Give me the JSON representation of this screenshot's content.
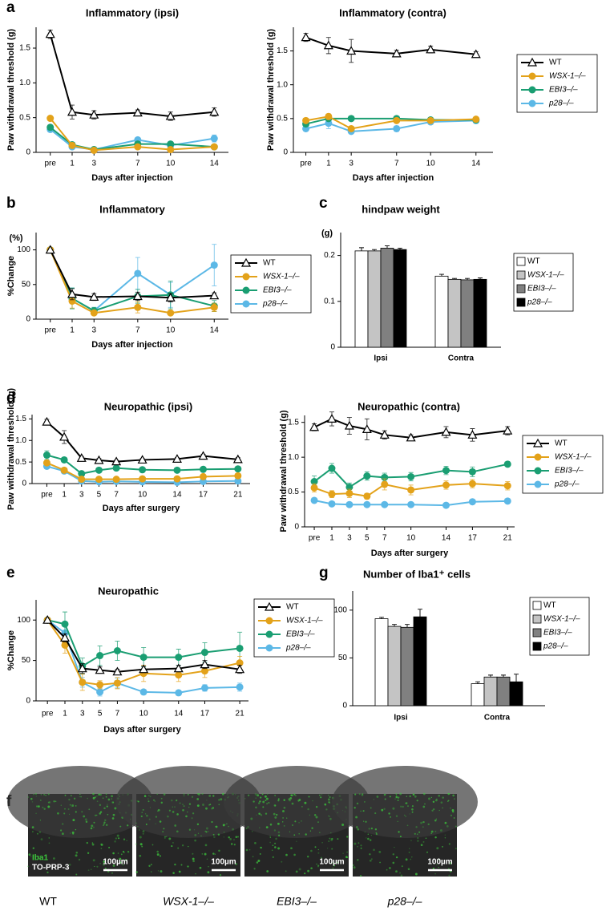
{
  "chart_data": [
    {
      "panel": "a",
      "type": "line",
      "title": "Inflammatory (ipsi)",
      "ylabel": "Paw withdrawal threshold (g)",
      "xlabel": "Days after injection",
      "x": [
        -1,
        1,
        3,
        7,
        10,
        14
      ],
      "xticks": [
        {
          "value": -1,
          "label": "pre"
        },
        1,
        3,
        7,
        10,
        14
      ],
      "xlim": [
        -2.3,
        15.3
      ],
      "ylim": [
        0,
        1.8
      ],
      "yticks": [
        0,
        0.5,
        {
          "value": 1,
          "label": "1.0"
        },
        1.5
      ],
      "series": [
        {
          "color": "#000000",
          "marker": "triangle-open",
          "values": [
            1.7,
            0.58,
            0.54,
            0.57,
            0.52,
            0.58
          ],
          "errors": [
            0.06,
            0.1,
            0.06,
            0.04,
            0.06,
            0.06
          ]
        },
        {
          "color": "#e3a21a",
          "marker": "circle",
          "values": [
            0.49,
            0.1,
            0.03,
            0.08,
            0.04,
            0.08
          ],
          "errors": [
            0.02,
            0.02,
            0.01,
            0.02,
            0.01,
            0.02
          ]
        },
        {
          "color": "#1a9e72",
          "marker": "circle",
          "values": [
            0.36,
            0.11,
            0.04,
            0.12,
            0.12,
            0.08
          ],
          "errors": [
            0.03,
            0.02,
            0.01,
            0.02,
            0.02,
            0.02
          ]
        },
        {
          "color": "#5cb8e6",
          "marker": "circle",
          "values": [
            0.33,
            0.08,
            0.04,
            0.18,
            0.1,
            0.2
          ],
          "errors": [
            0.03,
            0.02,
            0.01,
            0.03,
            0.03,
            0.05
          ]
        }
      ]
    },
    {
      "type": "line",
      "title": "Inflammatory (contra)",
      "ylabel": "Paw withdrawal threshold (g)",
      "xlabel": "Days after injection",
      "x": [
        -1,
        1,
        3,
        7,
        10,
        14
      ],
      "xticks": [
        {
          "value": -1,
          "label": "pre"
        },
        1,
        3,
        7,
        10,
        14
      ],
      "xlim": [
        -2.1,
        15.5
      ],
      "ylim": [
        0,
        1.85
      ],
      "yticks": [
        0,
        0.5,
        {
          "value": 1,
          "label": "1.0"
        },
        1.5
      ],
      "legend": "right",
      "series": [
        {
          "name": "WT",
          "color": "#000000",
          "marker": "triangle-open",
          "values": [
            1.7,
            1.58,
            1.5,
            1.46,
            1.52,
            1.45
          ],
          "errors": [
            0.06,
            0.12,
            0.17,
            0.05,
            0.05,
            0.04
          ]
        },
        {
          "name": "WSX-1–/–",
          "font_style": "italic",
          "color": "#e3a21a",
          "marker": "circle",
          "values": [
            0.47,
            0.53,
            0.35,
            0.47,
            0.47,
            0.49
          ],
          "errors": [
            0.03,
            0.04,
            0.03,
            0.03,
            0.03,
            0.03
          ]
        },
        {
          "name": "EBI3–/–",
          "font_style": "italic",
          "color": "#1a9e72",
          "marker": "circle",
          "values": [
            0.42,
            0.5,
            0.5,
            0.5,
            0.48,
            0.48
          ],
          "errors": [
            0.03,
            0.03,
            0.02,
            0.02,
            0.02,
            0.02
          ]
        },
        {
          "name": "p28–/–",
          "font_style": "italic",
          "color": "#5cb8e6",
          "marker": "circle",
          "values": [
            0.35,
            0.43,
            0.31,
            0.35,
            0.45,
            0.47
          ],
          "errors": [
            0.03,
            0.08,
            0.03,
            0.04,
            0.03,
            0.04
          ]
        }
      ]
    },
    {
      "panel": "b",
      "type": "line",
      "title": "Inflammatory",
      "ylabel": "%Change",
      "yunit": "(%)",
      "xlabel": "Days after injection",
      "x": [
        -1,
        1,
        3,
        7,
        10,
        14
      ],
      "xticks": [
        {
          "value": -1,
          "label": "pre"
        },
        1,
        3,
        7,
        10,
        14
      ],
      "xlim": [
        -2.3,
        15.3
      ],
      "ylim": [
        0,
        125
      ],
      "yticks": [
        0,
        50,
        100
      ],
      "legend": "right",
      "series": [
        {
          "name": "WT",
          "color": "#000000",
          "marker": "triangle-open",
          "values": [
            100,
            36,
            32,
            33,
            31,
            34
          ],
          "errors": [
            0,
            8,
            5,
            6,
            6,
            4
          ]
        },
        {
          "name": "WSX-1–/–",
          "font_style": "italic",
          "color": "#e3a21a",
          "marker": "circle",
          "values": [
            100,
            26,
            9,
            17,
            9,
            17
          ],
          "errors": [
            0,
            10,
            3,
            8,
            3,
            6
          ]
        },
        {
          "name": "EBI3–/–",
          "font_style": "italic",
          "color": "#1a9e72",
          "marker": "circle",
          "values": [
            100,
            30,
            12,
            33,
            35,
            19
          ],
          "errors": [
            0,
            15,
            5,
            10,
            20,
            8
          ]
        },
        {
          "name": "p28–/–",
          "font_style": "italic",
          "color": "#5cb8e6",
          "marker": "circle",
          "values": [
            100,
            30,
            12,
            66,
            35,
            78
          ],
          "errors": [
            0,
            15,
            5,
            23,
            18,
            30
          ]
        }
      ]
    },
    {
      "panel": "c",
      "type": "bar",
      "title": "hindpaw weight",
      "yunit": "(g)",
      "categories": [
        "Ipsi",
        "Contra"
      ],
      "ylim": [
        0,
        0.25
      ],
      "yticks": [
        0,
        0.1,
        0.2
      ],
      "legend": "right",
      "series": [
        {
          "name": "WT",
          "color": "#ffffff",
          "values": [
            0.21,
            0.155
          ],
          "errors": [
            0.007,
            0.004
          ]
        },
        {
          "name": "WSX-1–/–",
          "font_style": "italic",
          "color": "#c4c4c4",
          "values": [
            0.21,
            0.148
          ],
          "errors": [
            0.003,
            0.002
          ]
        },
        {
          "name": "EBI3–/–",
          "font_style": "italic",
          "color": "#808080",
          "values": [
            0.216,
            0.147
          ],
          "errors": [
            0.005,
            0.003
          ]
        },
        {
          "name": "p28–/–",
          "font_style": "italic",
          "color": "#000000",
          "values": [
            0.213,
            0.148
          ],
          "errors": [
            0.003,
            0.003
          ]
        }
      ]
    },
    {
      "panel": "d",
      "type": "line",
      "title": "Neuropathic (ipsi)",
      "ylabel": "Paw withdrawal threshold (g)",
      "xlabel": "Days after surgery",
      "x": [
        -1,
        1,
        3,
        5,
        7,
        10,
        14,
        17,
        21
      ],
      "xticks": [
        {
          "value": -1,
          "label": "pre"
        },
        1,
        3,
        5,
        7,
        10,
        14,
        17,
        21
      ],
      "xlim": [
        -2.7,
        22.4
      ],
      "ylim": [
        0,
        1.6
      ],
      "yticks": [
        0,
        0.5,
        {
          "value": 1,
          "label": "1.0"
        },
        1.5
      ],
      "series": [
        {
          "color": "#000000",
          "marker": "triangle-open",
          "values": [
            1.43,
            1.08,
            0.59,
            0.54,
            0.51,
            0.55,
            0.57,
            0.64,
            0.56
          ],
          "errors": [
            0.06,
            0.15,
            0.04,
            0.04,
            0.03,
            0.03,
            0.03,
            0.04,
            0.04
          ]
        },
        {
          "color": "#e3a21a",
          "marker": "circle",
          "values": [
            0.48,
            0.31,
            0.1,
            0.1,
            0.1,
            0.11,
            0.11,
            0.16,
            0.18
          ],
          "errors": [
            0.05,
            0.03,
            0.02,
            0.02,
            0.02,
            0.02,
            0.02,
            0.03,
            0.03
          ]
        },
        {
          "color": "#1a9e72",
          "marker": "circle",
          "values": [
            0.66,
            0.55,
            0.23,
            0.31,
            0.36,
            0.32,
            0.31,
            0.33,
            0.34
          ],
          "errors": [
            0.1,
            0.05,
            0.03,
            0.03,
            0.03,
            0.03,
            0.03,
            0.03,
            0.03
          ]
        },
        {
          "color": "#5cb8e6",
          "marker": "circle",
          "values": [
            0.4,
            0.29,
            0.06,
            0.04,
            0.05,
            0.04,
            0.03,
            0.05,
            0.06
          ],
          "errors": [
            0.05,
            0.03,
            0.02,
            0.01,
            0.01,
            0.01,
            0.01,
            0.01,
            0.01
          ]
        }
      ]
    },
    {
      "type": "line",
      "title": "Neuropathic (contra)",
      "ylabel": "Paw withdrawal threshold (g)",
      "xlabel": "Days after surgery",
      "x": [
        -1,
        1,
        3,
        5,
        7,
        10,
        14,
        17,
        21
      ],
      "xticks": [
        {
          "value": -1,
          "label": "pre"
        },
        1,
        3,
        5,
        7,
        10,
        14,
        17,
        21
      ],
      "xlim": [
        -2.1,
        21.8
      ],
      "ylim": [
        0,
        1.6
      ],
      "yticks": [
        0,
        0.5,
        {
          "value": 1,
          "label": "1.0"
        },
        1.5
      ],
      "legend": "right",
      "series": [
        {
          "name": "WT",
          "color": "#000000",
          "marker": "triangle-open",
          "values": [
            1.43,
            1.55,
            1.45,
            1.4,
            1.32,
            1.28,
            1.36,
            1.32,
            1.38
          ],
          "errors": [
            0.05,
            0.1,
            0.12,
            0.15,
            0.06,
            0.04,
            0.08,
            0.09,
            0.06
          ]
        },
        {
          "name": "WSX-1–/–",
          "font_style": "italic",
          "color": "#e3a21a",
          "marker": "circle",
          "values": [
            0.56,
            0.47,
            0.48,
            0.44,
            0.61,
            0.53,
            0.6,
            0.62,
            0.59
          ],
          "errors": [
            0.06,
            0.05,
            0.06,
            0.04,
            0.08,
            0.07,
            0.06,
            0.06,
            0.06
          ]
        },
        {
          "name": "EBI3–/–",
          "font_style": "italic",
          "color": "#1a9e72",
          "marker": "circle",
          "values": [
            0.65,
            0.84,
            0.57,
            0.73,
            0.71,
            0.72,
            0.81,
            0.79,
            0.9
          ],
          "errors": [
            0.08,
            0.07,
            0.06,
            0.06,
            0.06,
            0.06,
            0.06,
            0.07,
            0.03
          ]
        },
        {
          "name": "p28–/–",
          "font_style": "italic",
          "color": "#5cb8e6",
          "marker": "circle",
          "values": [
            0.38,
            0.33,
            0.32,
            0.32,
            0.32,
            0.32,
            0.31,
            0.36,
            0.37
          ],
          "errors": [
            0.03,
            0.03,
            0.03,
            0.03,
            0.02,
            0.02,
            0.02,
            0.03,
            0.02
          ]
        }
      ]
    },
    {
      "panel": "e",
      "type": "line",
      "title": "Neuropathic",
      "ylabel": "%Change",
      "xlabel": "Days after surgery",
      "x": [
        -1,
        1,
        3,
        5,
        7,
        10,
        14,
        17,
        21
      ],
      "xticks": [
        {
          "value": -1,
          "label": "pre"
        },
        1,
        3,
        5,
        7,
        10,
        14,
        17,
        21
      ],
      "xlim": [
        -2.3,
        22
      ],
      "ylim": [
        0,
        125
      ],
      "yticks": [
        0,
        50,
        100
      ],
      "legend": "right",
      "series": [
        {
          "name": "WT",
          "color": "#000000",
          "marker": "triangle-open",
          "values": [
            100,
            78,
            40,
            38,
            36,
            39,
            40,
            45,
            39
          ],
          "errors": [
            0,
            5,
            6,
            4,
            3,
            4,
            4,
            5,
            5
          ]
        },
        {
          "name": "WSX-1–/–",
          "font_style": "italic",
          "color": "#e3a21a",
          "marker": "circle",
          "values": [
            100,
            69,
            23,
            20,
            22,
            34,
            32,
            37,
            47
          ],
          "errors": [
            0,
            10,
            10,
            5,
            7,
            10,
            8,
            8,
            8
          ]
        },
        {
          "name": "EBI3–/–",
          "font_style": "italic",
          "color": "#1a9e72",
          "marker": "circle",
          "values": [
            100,
            95,
            43,
            56,
            62,
            54,
            54,
            60,
            65
          ],
          "errors": [
            0,
            15,
            10,
            12,
            12,
            12,
            10,
            12,
            20
          ]
        },
        {
          "name": "p28–/–",
          "font_style": "italic",
          "color": "#5cb8e6",
          "marker": "circle",
          "values": [
            100,
            84,
            23,
            11,
            22,
            11,
            10,
            16,
            17
          ],
          "errors": [
            0,
            8,
            6,
            5,
            6,
            3,
            3,
            4,
            5
          ]
        }
      ]
    },
    {
      "panel": "g",
      "type": "bar",
      "title": "Number of Iba1⁺ cells",
      "categories": [
        "Ipsi",
        "Contra"
      ],
      "ylim": [
        0,
        120
      ],
      "yticks": [
        0,
        50,
        100
      ],
      "legend": "right",
      "series": [
        {
          "name": "WT",
          "color": "#ffffff",
          "values": [
            91,
            23
          ],
          "errors": [
            1.5,
            2
          ]
        },
        {
          "name": "WSX-1–/–",
          "font_style": "italic",
          "color": "#c4c4c4",
          "values": [
            83,
            30
          ],
          "errors": [
            2,
            2
          ]
        },
        {
          "name": "EBI3–/–",
          "font_style": "italic",
          "color": "#808080",
          "values": [
            82,
            30
          ],
          "errors": [
            3,
            2
          ]
        },
        {
          "name": "p28–/–",
          "font_style": "italic",
          "color": "#000000",
          "values": [
            93,
            25
          ],
          "errors": [
            8,
            8
          ]
        }
      ]
    }
  ],
  "figure_f": {
    "panel": "f",
    "stain_labels": [
      "Iba1",
      "TO-PRP-3"
    ],
    "stain_colors": [
      "#3cc83c",
      "#ffffff"
    ],
    "images": [
      {
        "caption": "WT",
        "scale_bar": "100µm"
      },
      {
        "caption": "WSX-1–/–",
        "font_style": "italic",
        "scale_bar": "100µm"
      },
      {
        "caption": "EBI3–/–",
        "font_style": "italic",
        "scale_bar": "100µm"
      },
      {
        "caption": "p28–/–",
        "font_style": "italic",
        "scale_bar": "100µm"
      }
    ]
  }
}
